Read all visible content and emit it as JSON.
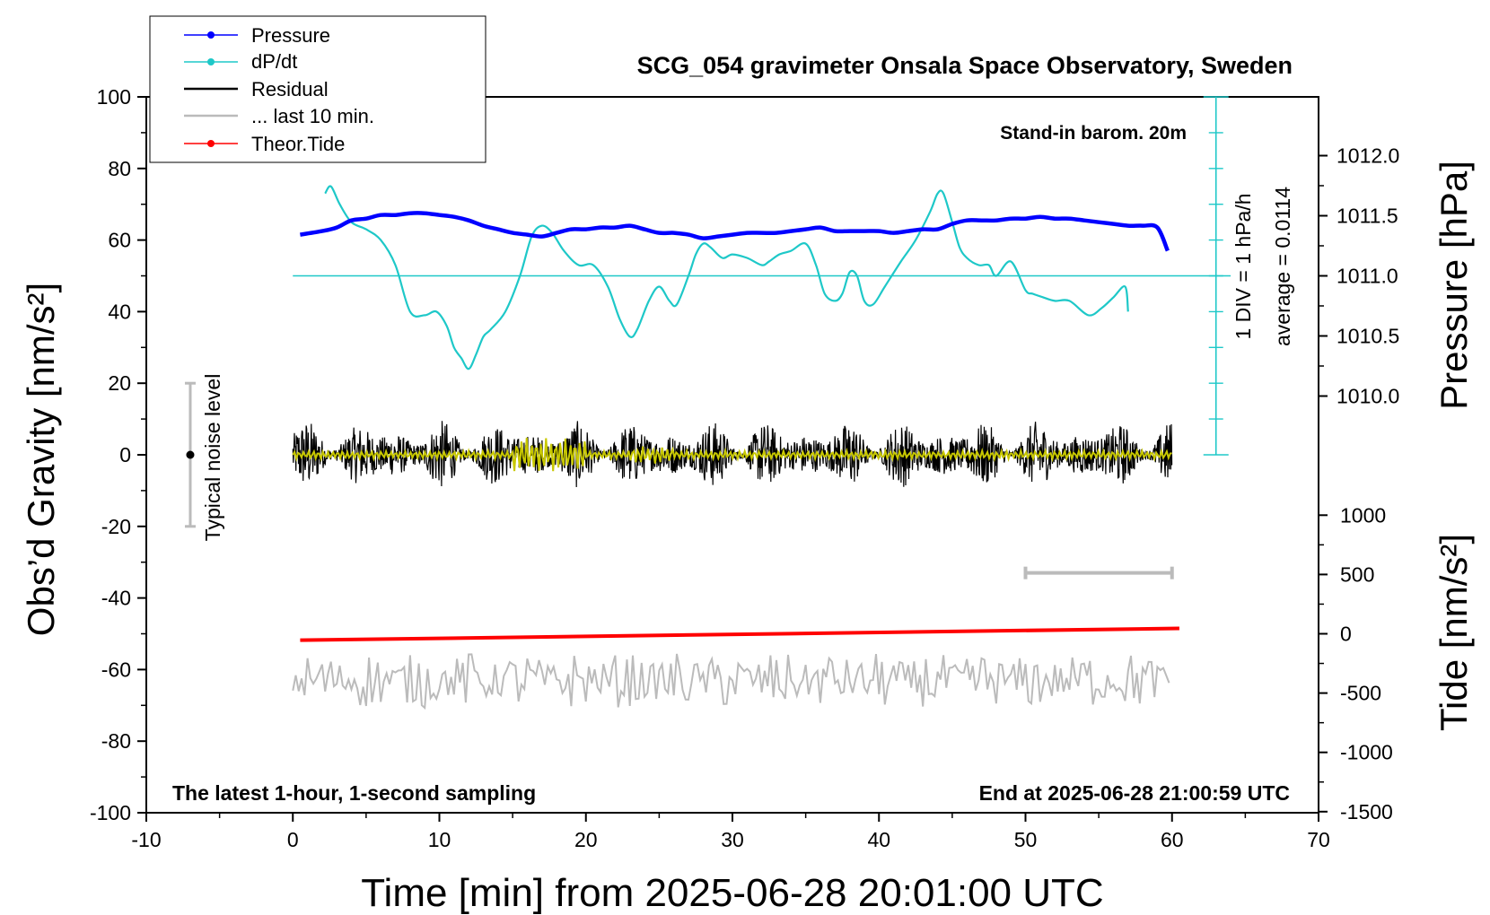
{
  "chart_data": {
    "type": "line",
    "title": "SCG_054 gravimeter Onsala Space Observatory, Sweden",
    "xlabel": "Time [min] from 2025-06-28 20:01:00 UTC",
    "ylabel_left": "Obs’d Gravity [nm/s²]",
    "ylabel_right_pressure": "Pressure [hPa]",
    "ylabel_right_tide": "Tide [nm/s²]",
    "xlim": [
      -10,
      70
    ],
    "ylim": [
      -100,
      100
    ],
    "xticks": [
      -10,
      0,
      10,
      20,
      30,
      40,
      50,
      60,
      70
    ],
    "yticks": [
      100,
      80,
      60,
      40,
      20,
      0,
      -20,
      -40,
      -60,
      -80,
      -100
    ],
    "pressure_ticks": [
      "1012.0",
      "1011.5",
      "1011.0",
      "1010.5",
      "1010.0"
    ],
    "tide_ticks": [
      "1000",
      "500",
      "0",
      "-500",
      "-1000",
      "-1500"
    ],
    "annotations": {
      "barometer": "Stand-in barom. 20m",
      "bottom_left": "The latest 1-hour, 1-second sampling",
      "bottom_right": "End at 2025-06-28 21:00:59 UTC",
      "dpdt_scale": "1 DIV = 1 hPa/h",
      "dpdt_average": "average = 0.0114",
      "noise": "Typical noise level"
    },
    "legend": [
      {
        "name": "Pressure",
        "color": "#0000ff"
      },
      {
        "name": "dP/dt",
        "color": "#1ec8c8"
      },
      {
        "name": "Residual",
        "color": "#000000"
      },
      {
        "name": "... last 10 min.",
        "color": "#bbbbbb"
      },
      {
        "name": "Theor.Tide",
        "color": "#ff0000"
      }
    ],
    "series": [
      {
        "name": "Pressure",
        "color": "#0000ff",
        "x": [
          0.5,
          2,
          3,
          4,
          5,
          6,
          7,
          8,
          9,
          10,
          11,
          12,
          13,
          14,
          15,
          16,
          17,
          18,
          19,
          20,
          21,
          22,
          23,
          24,
          25,
          26,
          27,
          28,
          29,
          30,
          31,
          32,
          33,
          34,
          35,
          36,
          37,
          38,
          39,
          40,
          41,
          42,
          43,
          44,
          45,
          46,
          47,
          48,
          49,
          50,
          51,
          52,
          53,
          54,
          55,
          56,
          57,
          58,
          59,
          59.7
        ],
        "y": [
          61.5,
          62.5,
          63.5,
          65.5,
          66,
          67,
          67,
          67.5,
          67.5,
          67,
          66.5,
          65.5,
          64,
          63,
          62,
          61.5,
          61,
          62,
          63,
          63,
          63.5,
          63.5,
          64,
          63,
          62,
          62,
          61.5,
          60.5,
          61,
          61.5,
          62,
          62,
          62,
          62.5,
          63,
          63.5,
          62.5,
          62.5,
          62.5,
          62.5,
          62,
          62.5,
          63,
          63,
          64.5,
          65.5,
          65.5,
          65.5,
          66,
          66,
          66.5,
          66,
          66,
          65.5,
          65,
          64.5,
          64,
          64,
          63.5,
          57
        ]
      },
      {
        "name": "dP/dt",
        "color": "#1ec8c8",
        "x": [
          2.2,
          2.6,
          3.2,
          4,
          5,
          6,
          7,
          8,
          9,
          9.8,
          10.5,
          11,
          11.5,
          12,
          12.5,
          13,
          13.5,
          14.5,
          15.5,
          16.3,
          17,
          17.7,
          18.5,
          19.5,
          20.5,
          21.5,
          22.3,
          23,
          23.5,
          24.3,
          25,
          25.7,
          26.2,
          27,
          27.5,
          28,
          28.5,
          29.3,
          30,
          31,
          32,
          32.5,
          33.2,
          34,
          35,
          35.7,
          36.3,
          37,
          37.5,
          38,
          38.5,
          39,
          39.6,
          40.4,
          41.5,
          42.5,
          43.5,
          44,
          44.4,
          45,
          45.5,
          46,
          46.8,
          47.5,
          48,
          49,
          50,
          50.5,
          51.2,
          52,
          53,
          54.3,
          55.2,
          56,
          56.8,
          57
        ],
        "y": [
          73,
          75,
          70,
          65,
          63,
          60,
          53,
          40,
          39,
          40,
          36,
          30,
          27,
          24,
          28,
          33,
          35,
          40,
          50,
          61,
          64,
          62,
          57,
          53,
          53,
          47,
          38,
          33,
          35,
          43,
          47,
          43,
          42,
          50,
          56,
          59,
          58,
          55,
          56,
          55,
          53,
          54,
          56,
          57,
          59,
          53,
          45,
          43,
          45,
          51,
          50,
          43,
          42,
          47,
          54,
          60,
          68,
          73,
          73,
          65,
          58,
          55,
          53,
          53,
          50,
          54,
          46,
          45,
          44,
          43,
          43,
          39,
          41,
          44,
          47,
          40
        ]
      },
      {
        "name": "Theor.Tide",
        "color": "#ff0000",
        "x": [
          0.5,
          60.5
        ],
        "y": [
          -51.8,
          -48.5
        ]
      }
    ],
    "residual": {
      "x_range": [
        0,
        60
      ],
      "center": 0,
      "amplitude": 9
    },
    "residual_smoothed": {
      "color": "#c8c800"
    },
    "last_10_min": {
      "x_range": [
        0,
        60
      ],
      "center": -63,
      "amplitude": 8
    },
    "noise_bar": {
      "x": -7,
      "y_range": [
        -20,
        20
      ],
      "point": 0
    },
    "gray_scale_bar": {
      "x_range": [
        50,
        60
      ],
      "y": -33
    },
    "dpdt_reference": {
      "y": 50,
      "x_range": [
        0,
        64
      ]
    }
  }
}
